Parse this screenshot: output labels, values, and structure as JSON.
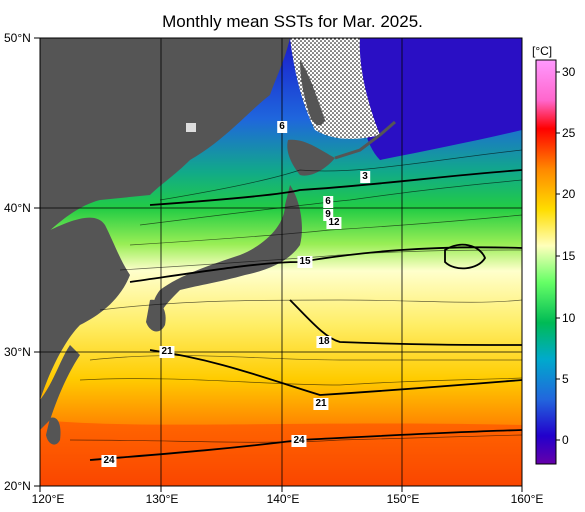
{
  "title": "Monthly mean SSTs for Mar. 2025.",
  "lat_labels": [
    "50°N",
    "40°N",
    "30°N",
    "20°N"
  ],
  "lon_labels": [
    "120°E",
    "130°E",
    "140°E",
    "150°E",
    "160°E"
  ],
  "contour_labels": [
    "6",
    "3",
    "6",
    "9",
    "12",
    "15",
    "18",
    "21",
    "21",
    "24",
    "24"
  ],
  "colorbar": {
    "unit": "[°C]",
    "ticks": [
      "30",
      "25",
      "20",
      "15",
      "10",
      "5",
      "0"
    ],
    "colors": [
      "#ff66ff",
      "#ff2200",
      "#ff8800",
      "#ffdd00",
      "#ffff88",
      "#66ff66",
      "#00bb66",
      "#00aacc",
      "#2255dd",
      "#2200cc",
      "#5500aa"
    ]
  },
  "colors": {
    "land": "#555555",
    "ice_hatch": "#000000"
  }
}
